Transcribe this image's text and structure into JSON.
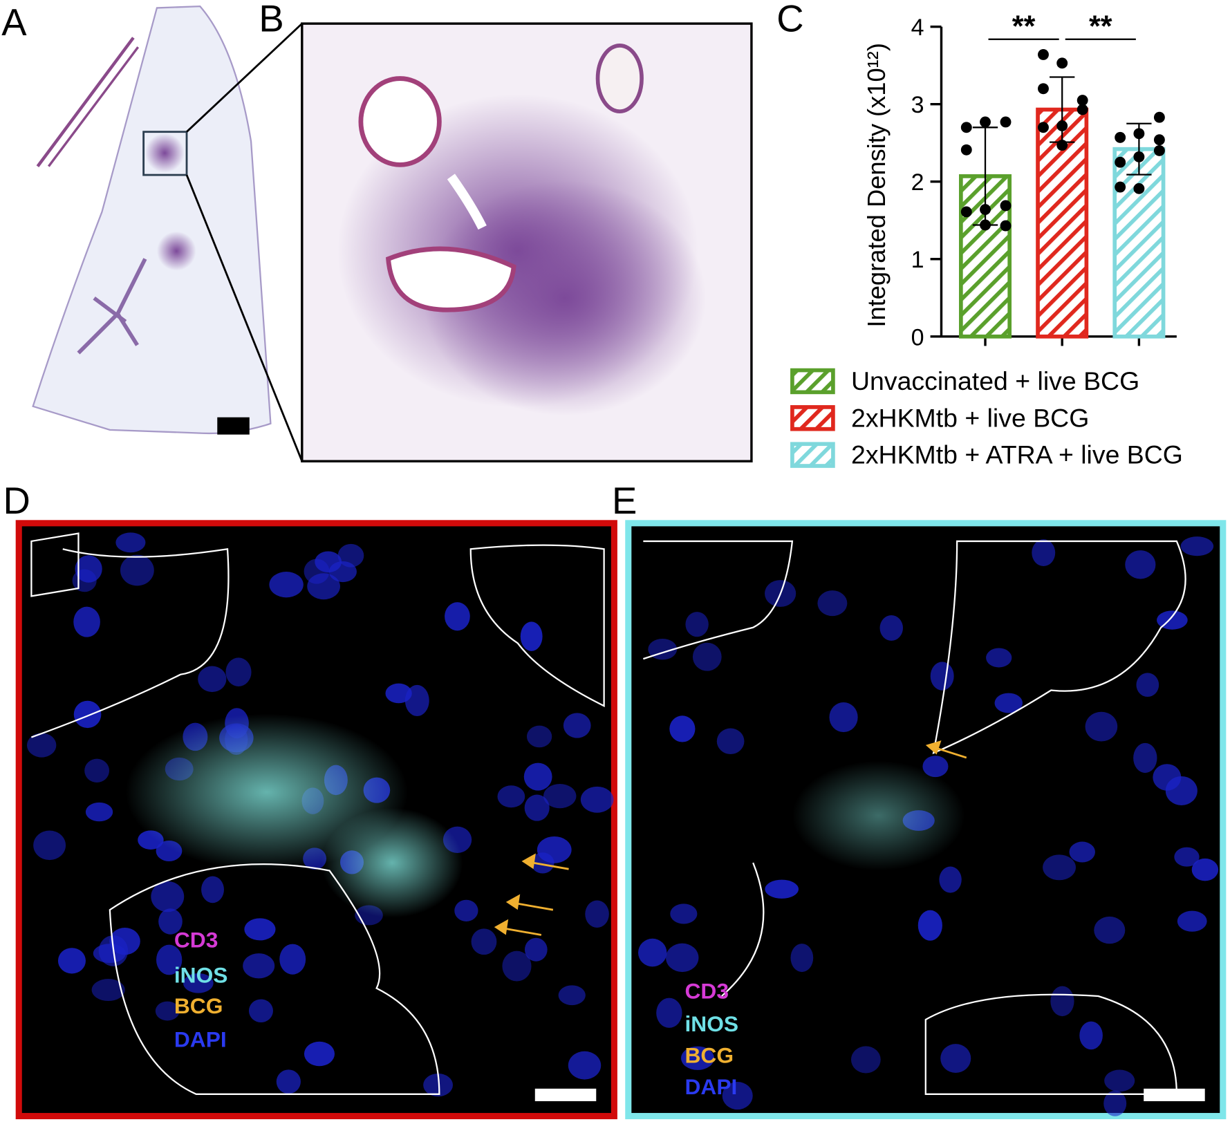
{
  "figure": {
    "panel_labels": [
      "A",
      "B",
      "C",
      "D",
      "E"
    ],
    "d_legend": [
      "CD3",
      "iNOS",
      "BCG",
      "DAPI"
    ],
    "e_legend": [
      "CD3",
      "iNOS",
      "BCG",
      "DAPI"
    ]
  },
  "chart_data": {
    "type": "bar",
    "ylabel": "Integrated Density (x10¹²)",
    "ylim": [
      0,
      4
    ],
    "yticks": [
      0,
      1,
      2,
      3,
      4
    ],
    "annotations": [
      "**",
      "**"
    ],
    "series": [
      {
        "name": "Unvaccinated + live BCG",
        "color": "#5aa02c",
        "values": [
          2.07
        ],
        "errors": [
          0.63
        ],
        "points": [
          2.7,
          2.77,
          2.77,
          2.41,
          1.64,
          1.69,
          1.61,
          1.44,
          1.43
        ]
      },
      {
        "name": "2xHKMtb + live BCG",
        "color": "#e0281e",
        "values": [
          2.93
        ],
        "errors": [
          0.42
        ],
        "points": [
          3.64,
          3.53,
          3.05,
          3.2,
          2.72,
          2.93,
          2.7,
          2.47
        ]
      },
      {
        "name": "2xHKMtb + ATRA + live BCG",
        "color": "#7fd8dc",
        "values": [
          2.42
        ],
        "errors": [
          0.33
        ],
        "points": [
          2.57,
          2.62,
          2.54,
          2.25,
          2.32,
          2.4,
          1.93,
          1.91,
          2.83
        ]
      }
    ]
  }
}
